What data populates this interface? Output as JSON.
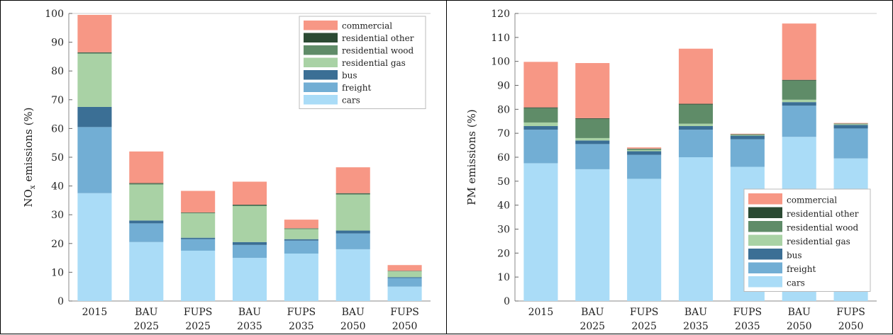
{
  "colors": {
    "cars": "#aadcf7",
    "freight": "#72aed4",
    "bus": "#3b6f95",
    "residential gas": "#a9d2a5",
    "residential wood": "#5f8c68",
    "residential other": "#2b4a33",
    "commercial": "#f79785"
  },
  "chart_data": [
    {
      "type": "bar",
      "stacked": true,
      "categories": [
        "2015",
        "BAU\n2025",
        "FUPS\n2025",
        "BAU\n2035",
        "FUPS\n2035",
        "BAU\n2050",
        "FUPS\n2050"
      ],
      "ylabel_main": "NO",
      "ylabel_sub": "x",
      "ylabel_rest": " emissions (%)",
      "ylim": [
        0,
        100
      ],
      "yticks": [
        0,
        10,
        20,
        30,
        40,
        50,
        60,
        70,
        80,
        90,
        100
      ],
      "legend_position": "top-right",
      "grid": false,
      "series": [
        {
          "name": "cars",
          "values": [
            37.5,
            20.5,
            17.5,
            15,
            16.5,
            18,
            5
          ]
        },
        {
          "name": "freight",
          "values": [
            23,
            6.5,
            4,
            4.5,
            4.5,
            5.5,
            3
          ]
        },
        {
          "name": "bus",
          "values": [
            7,
            1,
            0.5,
            1,
            0.5,
            1,
            0.3
          ]
        },
        {
          "name": "residential gas",
          "values": [
            18.5,
            12.5,
            8.5,
            12.5,
            3.5,
            12.5,
            2
          ]
        },
        {
          "name": "residential wood",
          "values": [
            0.3,
            0.3,
            0.2,
            0.3,
            0.2,
            0.3,
            0.1
          ]
        },
        {
          "name": "residential other",
          "values": [
            0.2,
            0.2,
            0.1,
            0.2,
            0.1,
            0.2,
            0.1
          ]
        },
        {
          "name": "commercial",
          "values": [
            13,
            11,
            7.5,
            8,
            3,
            9,
            2
          ]
        }
      ]
    },
    {
      "type": "bar",
      "stacked": true,
      "categories": [
        "2015",
        "BAU\n2025",
        "FUPS\n2025",
        "BAU\n2035",
        "FUPS\n2035",
        "BAU\n2050",
        "FUPS\n2050"
      ],
      "ylabel_main": "PM emissions (%)",
      "ylabel_sub": "",
      "ylabel_rest": "",
      "ylim": [
        0,
        120
      ],
      "yticks": [
        0,
        10,
        20,
        30,
        40,
        50,
        60,
        70,
        80,
        90,
        100,
        110,
        120
      ],
      "legend_position": "bottom-right",
      "grid": false,
      "series": [
        {
          "name": "cars",
          "values": [
            57.5,
            55,
            51,
            60,
            56,
            68.5,
            59.5
          ]
        },
        {
          "name": "freight",
          "values": [
            14,
            10.5,
            10,
            11.5,
            11.5,
            13,
            12.5
          ]
        },
        {
          "name": "bus",
          "values": [
            1.5,
            1.5,
            1.5,
            1.5,
            1.5,
            1.5,
            1.5
          ]
        },
        {
          "name": "residential gas",
          "values": [
            1.5,
            1,
            0.5,
            1,
            0.3,
            1,
            0.3
          ]
        },
        {
          "name": "residential wood",
          "values": [
            6,
            8,
            0.5,
            8,
            0.2,
            8,
            0.2
          ]
        },
        {
          "name": "residential other",
          "values": [
            0.3,
            0.3,
            0.1,
            0.3,
            0.1,
            0.3,
            0.1
          ]
        },
        {
          "name": "commercial",
          "values": [
            19,
            23,
            0.5,
            23,
            0.2,
            23.5,
            0.2
          ]
        }
      ]
    }
  ]
}
